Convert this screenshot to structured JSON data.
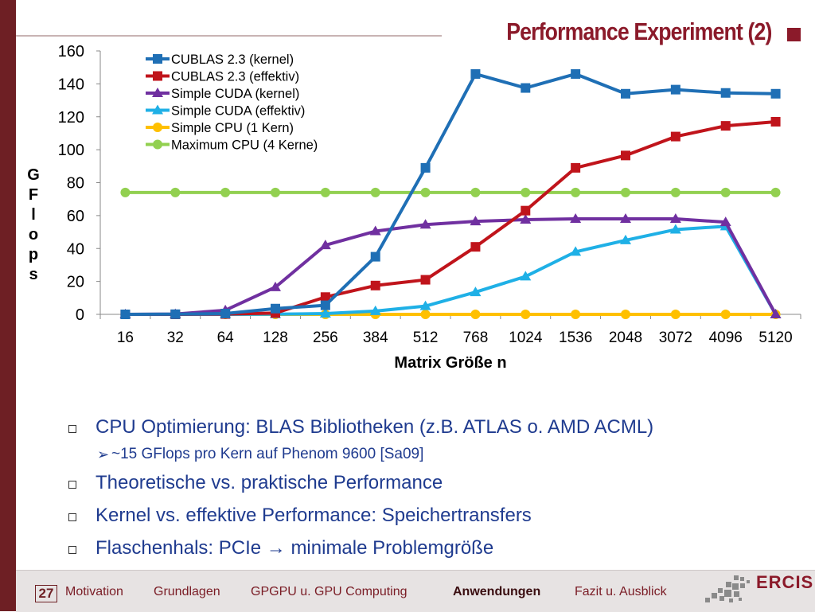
{
  "slide": {
    "title": "Performance Experiment (2)"
  },
  "chart_data": {
    "type": "line",
    "ylabel": "GFlops",
    "xlabel": "Matrix Größe n",
    "ylim": [
      0,
      160
    ],
    "y_ticks": [
      "0",
      "20",
      "40",
      "60",
      "80",
      "100",
      "120",
      "140",
      "160"
    ],
    "categories": [
      "16",
      "32",
      "64",
      "128",
      "256",
      "384",
      "512",
      "768",
      "1024",
      "1536",
      "2048",
      "3072",
      "4096",
      "5120"
    ],
    "legend_position": "top-left",
    "series": [
      {
        "name": "CUBLAS 2.3 (kernel)",
        "color": "#1f6fb5",
        "marker": "square",
        "values": [
          0,
          0.1,
          0.5,
          3.5,
          5.5,
          35,
          89,
          146,
          137.5,
          146,
          134,
          136.5,
          134.5,
          134
        ]
      },
      {
        "name": "CUBLAS 2.3 (effektiv)",
        "color": "#c0141b",
        "marker": "square",
        "values": [
          0,
          0,
          0.2,
          0.8,
          10.5,
          17.5,
          21,
          41,
          63,
          89,
          96.5,
          108,
          114.5,
          117
        ]
      },
      {
        "name": "Simple CUDA (kernel)",
        "color": "#7030a0",
        "marker": "triangle",
        "values": [
          0,
          0.2,
          2.5,
          16.5,
          42,
          50.5,
          54.5,
          56.5,
          57.5,
          58,
          58,
          58,
          56,
          0
        ]
      },
      {
        "name": "Simple CUDA (effektiv)",
        "color": "#1fb0e6",
        "marker": "triangle",
        "values": [
          0,
          0,
          0,
          0.1,
          0.5,
          2,
          5,
          13.5,
          23,
          38,
          45,
          51.5,
          53.5,
          0
        ]
      },
      {
        "name": "Simple CPU (1 Kern)",
        "color": "#ffc000",
        "marker": "circle",
        "values": [
          0,
          0,
          0,
          0,
          0,
          0,
          0,
          0,
          0,
          0,
          0,
          0,
          0,
          0
        ]
      },
      {
        "name": "Maximum CPU (4 Kerne)",
        "color": "#92d050",
        "marker": "circle",
        "values": [
          74,
          74,
          74,
          74,
          74,
          74,
          74,
          74,
          74,
          74,
          74,
          74,
          74,
          74
        ]
      }
    ]
  },
  "bullets": [
    {
      "text": "CPU Optimierung: BLAS Bibliotheken (z.B. ATLAS o. AMD ACML)",
      "sub": "~15 GFlops pro Kern auf Phenom 9600 [Sa09]"
    },
    {
      "text": "Theoretische vs. praktische Performance"
    },
    {
      "text": "Kernel vs. effektive Performance: Speichertransfers"
    },
    {
      "text": "Flaschenhals: PCIe → minimale Problemgröße"
    }
  ],
  "footer": {
    "slide_number": "27",
    "nav": [
      "Motivation",
      "Grundlagen",
      "GPGPU u. GPU Computing",
      "Anwendungen",
      "Fazit u. Ausblick"
    ],
    "active_nav": "Anwendungen",
    "logo_text": "ERCIS"
  }
}
